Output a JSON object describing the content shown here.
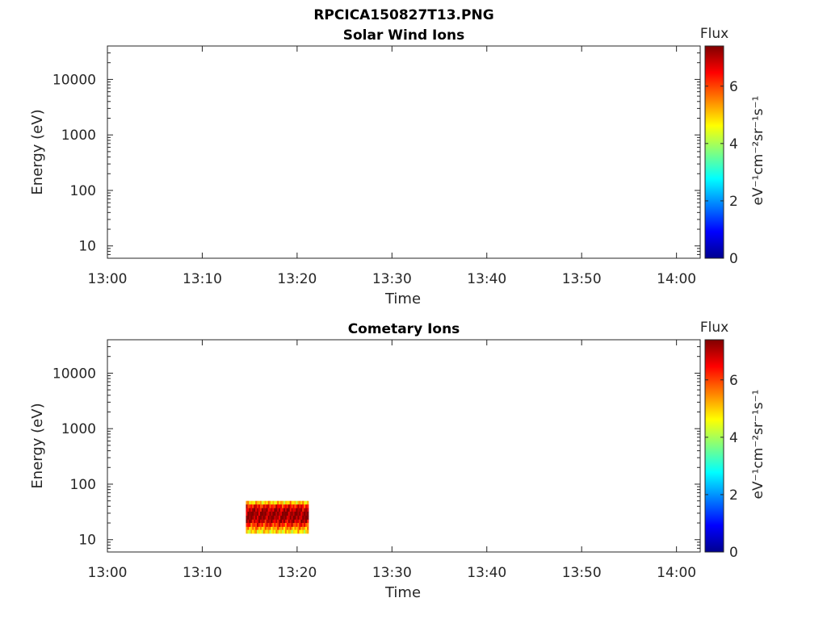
{
  "figure": {
    "title": "RPCICA150827T13.PNG"
  },
  "chart_data": [
    {
      "type": "heatmap",
      "title": "Solar Wind Ions",
      "xlabel": "Time",
      "ylabel": "Energy (eV)",
      "x_ticks": [
        "13:00",
        "13:10",
        "13:20",
        "13:30",
        "13:40",
        "13:50",
        "14:00"
      ],
      "xlim_minutes": [
        0,
        62.5
      ],
      "y_scale": "log",
      "y_ticks": [
        "10",
        "100",
        "1000",
        "10000"
      ],
      "ylim": [
        6,
        40000
      ],
      "colorbar": {
        "label": "Flux",
        "units": "eV⁻¹cm⁻²sr⁻¹s⁻¹",
        "ticks": [
          "0",
          "2",
          "4",
          "6"
        ],
        "range": [
          0,
          7.4
        ],
        "colormap": "jet"
      },
      "cells": []
    },
    {
      "type": "heatmap",
      "title": "Cometary Ions",
      "xlabel": "Time",
      "ylabel": "Energy (eV)",
      "x_ticks": [
        "13:00",
        "13:10",
        "13:20",
        "13:30",
        "13:40",
        "13:50",
        "14:00"
      ],
      "xlim_minutes": [
        0,
        62.5
      ],
      "y_scale": "log",
      "y_ticks": [
        "10",
        "100",
        "1000",
        "10000"
      ],
      "ylim": [
        6,
        40000
      ],
      "colorbar": {
        "label": "Flux",
        "units": "eV⁻¹cm⁻²sr⁻¹s⁻¹",
        "ticks": [
          "0",
          "2",
          "4",
          "6"
        ],
        "range": [
          0,
          7.4
        ],
        "colormap": "jet"
      },
      "cells": {
        "time_range_minutes": [
          14.6,
          21.2
        ],
        "energy_bands": [
          {
            "e_low": 43,
            "e_high": 50,
            "flux": 5.0
          },
          {
            "e_low": 37,
            "e_high": 43,
            "flux": 6.4
          },
          {
            "e_low": 32,
            "e_high": 37,
            "flux": 7.0
          },
          {
            "e_low": 27,
            "e_high": 32,
            "flux": 7.3
          },
          {
            "e_low": 23,
            "e_high": 27,
            "flux": 7.2
          },
          {
            "e_low": 20,
            "e_high": 23,
            "flux": 6.9
          },
          {
            "e_low": 17,
            "e_high": 20,
            "flux": 6.2
          },
          {
            "e_low": 15,
            "e_high": 17,
            "flux": 5.4
          },
          {
            "e_low": 13,
            "e_high": 15,
            "flux": 4.8
          }
        ]
      }
    }
  ]
}
